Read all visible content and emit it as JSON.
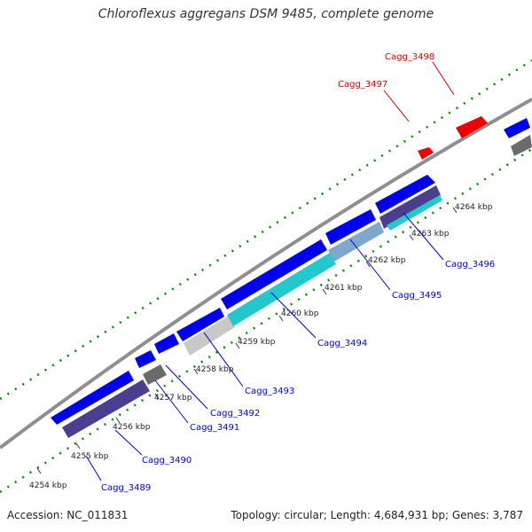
{
  "title": "Chloroflexus aggregans DSM 9485, complete genome",
  "footer": {
    "accession": "Accession: NC_011831",
    "summary": "Topology: circular; Length: 4,684,931 bp; Genes: 3,787"
  },
  "ticks": [
    "4254 kbp",
    "4255 kbp",
    "4256 kbp",
    "4257 kbp",
    "4258 kbp",
    "4259 kbp",
    "4260 kbp",
    "4261 kbp",
    "4262 kbp",
    "4263 kbp",
    "4264 kbp"
  ],
  "genes": [
    {
      "label": "Cagg_3489",
      "color": "#0000cc"
    },
    {
      "label": "Cagg_3490",
      "color": "#0000cc"
    },
    {
      "label": "Cagg_3491",
      "color": "#0000cc"
    },
    {
      "label": "Cagg_3492",
      "color": "#0000cc"
    },
    {
      "label": "Cagg_3493",
      "color": "#0000cc"
    },
    {
      "label": "Cagg_3494",
      "color": "#0000cc"
    },
    {
      "label": "Cagg_3495",
      "color": "#0000cc"
    },
    {
      "label": "Cagg_3496",
      "color": "#0000cc"
    },
    {
      "label": "Cagg_3497",
      "color": "#cc0000"
    },
    {
      "label": "Cagg_3498",
      "color": "#cc0000"
    }
  ],
  "colors": {
    "forward_cds": "#0000ee",
    "reverse_cds": "#ff0000",
    "hit_dark": "#4a3f8f",
    "hit_cyan": "#22c8cc",
    "hit_light": "#c8c8c8",
    "hit_gray": "#6b6b6b",
    "backbone": "#888888",
    "dots": "#008800"
  }
}
